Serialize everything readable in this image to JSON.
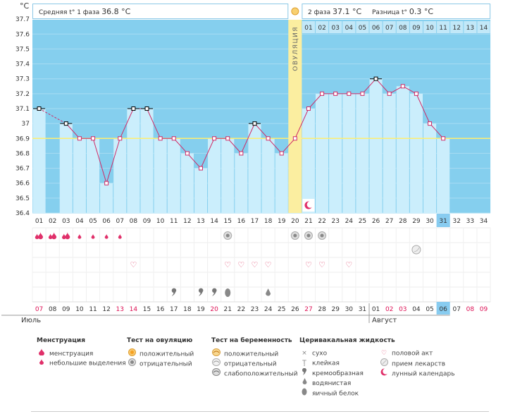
{
  "header": {
    "unit": "°C",
    "phase1_label": "Средняя t° 1 фаза",
    "phase1_value": "36.8 °C",
    "phase2_label": "2 фаза",
    "phase2_value": "37.1 °C",
    "diff_label": "Разница t°",
    "diff_value": "0.3 °C",
    "ovulation_label": "ОВУЛЯЦИЯ"
  },
  "chart_data": {
    "type": "line",
    "ylim": [
      36.4,
      37.8
    ],
    "y_ticks": [
      "36.4",
      "36.5",
      "36.6",
      "36.7",
      "36.8",
      "36.9",
      "37",
      "37.1",
      "37.2",
      "37.3",
      "37.4",
      "37.5",
      "37.6",
      "37.7",
      "37.8"
    ],
    "coverline": 36.9,
    "cycle_days": [
      "01",
      "02",
      "03",
      "04",
      "05",
      "06",
      "07",
      "08",
      "09",
      "10",
      "11",
      "12",
      "13",
      "14",
      "15",
      "16",
      "17",
      "18",
      "19",
      "20",
      "21",
      "22",
      "23",
      "24",
      "25",
      "26",
      "27",
      "28",
      "29",
      "30",
      "31",
      "32",
      "33",
      "34"
    ],
    "phase2_days": [
      "01",
      "02",
      "03",
      "04",
      "05",
      "06",
      "07",
      "08",
      "09",
      "10",
      "11",
      "12",
      "13",
      "14"
    ],
    "temperatures": [
      37.1,
      null,
      37.0,
      36.9,
      36.9,
      36.6,
      36.9,
      37.1,
      37.1,
      36.9,
      36.9,
      36.8,
      36.7,
      36.9,
      36.9,
      36.8,
      37.0,
      36.9,
      36.8,
      36.9,
      37.1,
      37.2,
      37.2,
      37.2,
      37.2,
      37.3,
      37.2,
      37.25,
      37.2,
      37.0,
      36.9,
      null,
      null,
      null
    ],
    "highlighted_days": [
      1,
      3,
      8,
      9,
      17,
      26
    ],
    "ovulation_day": 20,
    "current_day": 31,
    "dates": [
      "07",
      "08",
      "09",
      "10",
      "11",
      "12",
      "13",
      "14",
      "15",
      "16",
      "17",
      "18",
      "19",
      "20",
      "21",
      "22",
      "23",
      "24",
      "25",
      "26",
      "27",
      "28",
      "29",
      "30",
      "31",
      "01",
      "02",
      "03",
      "04",
      "05",
      "06",
      "07",
      "08",
      "09"
    ],
    "red_dates": [
      1,
      7,
      8,
      14,
      21,
      27,
      28,
      33,
      34
    ],
    "today_index": 31,
    "month1": "Июль",
    "month2": "Август"
  },
  "symptoms": {
    "menstruation_big": [
      1,
      2,
      3
    ],
    "menstruation_small": [
      4,
      5,
      6,
      7
    ],
    "ovulation_negative": [
      15,
      20,
      21,
      22
    ],
    "medication": [
      29
    ],
    "sex": [
      8,
      15,
      16,
      17,
      18,
      21,
      22,
      24
    ],
    "creamy": [
      11,
      13,
      14
    ],
    "egg_white": [
      15
    ],
    "watery": [
      18
    ],
    "lunar": [
      21
    ]
  },
  "legend": {
    "menstruation": {
      "title": "Менструация",
      "items": [
        "менструация",
        "небольшие выделения"
      ]
    },
    "ovulation_test": {
      "title": "Тест на овуляцию",
      "items": [
        "положительный",
        "отрицательный"
      ]
    },
    "pregnancy_test": {
      "title": "Тест на беременность",
      "items": [
        "положительный",
        "отрицательный",
        "слабоположительный"
      ]
    },
    "cervical": {
      "title": "Церивакальная жидкость",
      "items": [
        "сухо",
        "клейкая",
        "кремообразная",
        "водянистая",
        "яичный белок"
      ]
    },
    "other": {
      "items": [
        "половой акт",
        "прием лекарств",
        "лунный календарь"
      ]
    }
  },
  "colors": {
    "bg_blue": "#85cfee",
    "bar": "#cbeefc",
    "line": "#d02a66",
    "ovulation": "#fbeea0",
    "coverline": "#ffee70",
    "red_text": "#dd1155",
    "pink": "#ee4477"
  }
}
